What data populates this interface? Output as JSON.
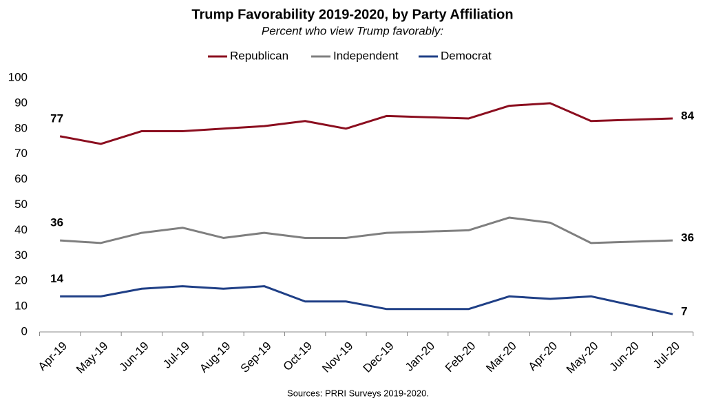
{
  "chart_data": {
    "type": "line",
    "title": "Trump Favorability 2019-2020, by Party Affiliation",
    "subtitle": "Percent who view Trump favorably:",
    "source": "Sources: PRRI Surveys 2019-2020.",
    "categories": [
      "Apr-19",
      "May-19",
      "Jun-19",
      "Jul-19",
      "Aug-19",
      "Sep-19",
      "Oct-19",
      "Nov-19",
      "Dec-19",
      "Jan-20",
      "Feb-20",
      "Mar-20",
      "Apr-20",
      "May-20",
      "Jun-20",
      "Jul-20"
    ],
    "series": [
      {
        "name": "Republican",
        "color": "#8b0e1f",
        "values": [
          77,
          74,
          79,
          79,
          80,
          81,
          83,
          80,
          85,
          84.5,
          84,
          89,
          90,
          83,
          83.5,
          84
        ]
      },
      {
        "name": "Independent",
        "color": "#7f7f7f",
        "values": [
          36,
          35,
          39,
          41,
          37,
          39,
          37,
          37,
          39,
          39.5,
          40,
          45,
          43,
          35,
          35.5,
          36
        ]
      },
      {
        "name": "Democrat",
        "color": "#1f3f86",
        "values": [
          14,
          14,
          17,
          18,
          17,
          18,
          12,
          12,
          9,
          9,
          9,
          14,
          13,
          14,
          10.5,
          7
        ]
      }
    ],
    "ylim": [
      0,
      100
    ],
    "yticks": [
      0,
      10,
      20,
      30,
      40,
      50,
      60,
      70,
      80,
      90,
      100
    ],
    "grid": false
  }
}
